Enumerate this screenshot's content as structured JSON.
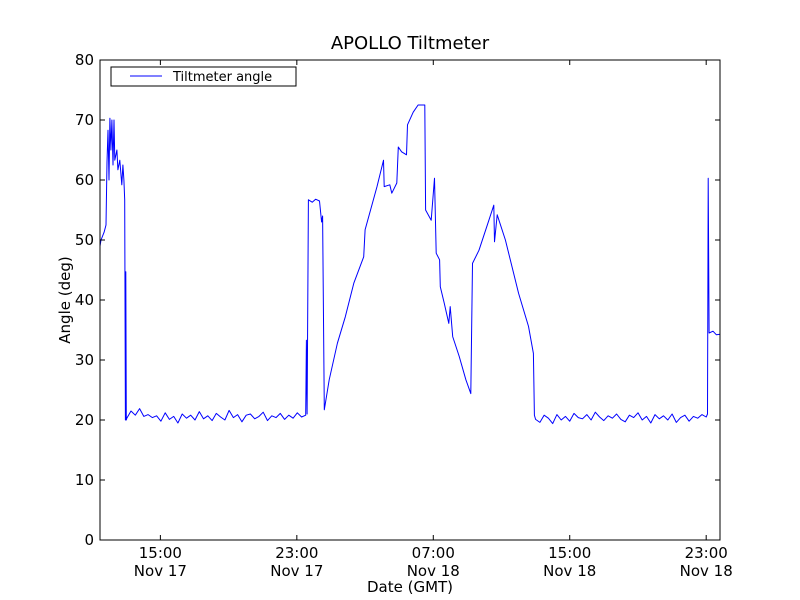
{
  "chart_data": {
    "type": "line",
    "title": "APOLLO Tiltmeter",
    "xlabel": "Date (GMT)",
    "ylabel": "Angle (deg)",
    "x_units": "hours since Nov 17 00:00 GMT",
    "xlim": [
      11.46,
      47.81
    ],
    "ylim": [
      0,
      80
    ],
    "yticks": [
      0,
      10,
      20,
      30,
      40,
      50,
      60,
      70,
      80
    ],
    "xticks": [
      {
        "value": 15,
        "time": "15:00",
        "date": "Nov 17"
      },
      {
        "value": 23,
        "time": "23:00",
        "date": "Nov 17"
      },
      {
        "value": 31,
        "time": "07:00",
        "date": "Nov 18"
      },
      {
        "value": 39,
        "time": "15:00",
        "date": "Nov 18"
      },
      {
        "value": 47,
        "time": "23:00",
        "date": "Nov 18"
      }
    ],
    "grid": false,
    "legend": {
      "position": "top-left",
      "entries": [
        "Tiltmeter angle"
      ]
    },
    "series": [
      {
        "name": "Tiltmeter angle",
        "color": "#0000ff",
        "segments": [
          {
            "points": [
              [
                11.46,
                0
              ],
              [
                11.46,
                49
              ],
              [
                11.52,
                50
              ],
              [
                11.7,
                51.3
              ],
              [
                11.81,
                52.5
              ],
              [
                11.87,
                63
              ],
              [
                11.93,
                68.3
              ],
              [
                11.99,
                60
              ],
              [
                12.04,
                70.3
              ],
              [
                12.1,
                65
              ],
              [
                12.16,
                70
              ],
              [
                12.22,
                62.5
              ],
              [
                12.28,
                70
              ],
              [
                12.33,
                63.3
              ],
              [
                12.45,
                65
              ],
              [
                12.51,
                61.7
              ],
              [
                12.62,
                63.3
              ],
              [
                12.74,
                59.2
              ],
              [
                12.8,
                62.5
              ],
              [
                12.86,
                60
              ],
              [
                12.91,
                56.7
              ],
              [
                12.95,
                20
              ],
              [
                12.97,
                44.7
              ],
              [
                13.0,
                20
              ]
            ]
          },
          {
            "t0": 13.03,
            "dt": 0.25,
            "values": [
              20.3,
              21.5,
              20.8,
              21.9,
              20.6,
              20.9,
              20.4,
              20.7,
              19.8,
              21.2,
              20.1,
              20.6,
              19.5,
              21.0,
              20.3,
              20.8,
              20.0,
              21.4,
              20.2,
              20.7,
              19.9,
              21.1,
              20.5,
              20.0,
              21.6,
              20.4,
              20.9,
              19.7,
              20.8,
              21.0,
              20.2,
              20.6,
              21.3,
              19.9,
              20.7,
              20.4,
              21.1,
              20.1,
              20.8,
              20.3,
              21.2,
              20.5
            ]
          },
          {
            "points": [
              [
                23.52,
                20.8
              ],
              [
                23.56,
                33.3
              ],
              [
                23.6,
                21
              ],
              [
                23.68,
                56.7
              ],
              [
                23.9,
                56.3
              ],
              [
                24.1,
                56.8
              ],
              [
                24.33,
                56.5
              ],
              [
                24.45,
                53
              ],
              [
                24.51,
                54
              ],
              [
                24.61,
                21.7
              ],
              [
                24.9,
                26.7
              ],
              [
                25.38,
                32.8
              ],
              [
                25.84,
                37.2
              ],
              [
                26.34,
                42.8
              ],
              [
                26.92,
                47.2
              ],
              [
                27.0,
                51.7
              ],
              [
                27.7,
                58.9
              ],
              [
                28.08,
                63.3
              ],
              [
                28.12,
                58.9
              ],
              [
                28.45,
                59.2
              ],
              [
                28.57,
                57.8
              ],
              [
                28.86,
                59.5
              ],
              [
                28.95,
                65.5
              ],
              [
                29.14,
                64.7
              ],
              [
                29.43,
                64.2
              ],
              [
                29.49,
                69.2
              ],
              [
                29.82,
                71.3
              ],
              [
                30.11,
                72.5
              ],
              [
                30.5,
                72.5
              ],
              [
                30.55,
                55
              ],
              [
                30.88,
                53.3
              ],
              [
                31.07,
                60.3
              ],
              [
                31.17,
                47.8
              ],
              [
                31.37,
                46.7
              ],
              [
                31.41,
                42.2
              ],
              [
                31.64,
                39.5
              ],
              [
                31.91,
                36.1
              ],
              [
                31.99,
                38.9
              ],
              [
                32.14,
                33.9
              ],
              [
                32.52,
                30.6
              ],
              [
                32.91,
                26.7
              ],
              [
                33.2,
                24.4
              ],
              [
                33.3,
                46.1
              ],
              [
                33.68,
                48.3
              ],
              [
                34.26,
                53.3
              ],
              [
                34.55,
                55.8
              ],
              [
                34.59,
                49.7
              ],
              [
                34.75,
                54.2
              ],
              [
                35.23,
                50
              ],
              [
                36.0,
                41.1
              ],
              [
                36.58,
                35.6
              ],
              [
                36.87,
                31.1
              ],
              [
                36.93,
                20.8
              ]
            ]
          },
          {
            "t0": 37.0,
            "dt": 0.25,
            "values": [
              20.1,
              19.6,
              20.8,
              20.3,
              19.4,
              20.9,
              20.0,
              20.6,
              19.8,
              21.1,
              20.4,
              20.2,
              20.9,
              20.0,
              21.3,
              20.5,
              19.9,
              20.7,
              20.3,
              21.0,
              20.1,
              19.7,
              20.8,
              20.4,
              21.2,
              20.0,
              20.6,
              19.5,
              20.9,
              20.2,
              20.7,
              20.0,
              21.0,
              19.6,
              20.4,
              20.8,
              19.8,
              20.6,
              20.3,
              20.9
            ]
          },
          {
            "points": [
              [
                47.0,
                20.5
              ],
              [
                47.08,
                21
              ],
              [
                47.12,
                60.3
              ],
              [
                47.17,
                34.5
              ],
              [
                47.4,
                34.8
              ],
              [
                47.6,
                34.2
              ],
              [
                47.81,
                34.3
              ]
            ]
          }
        ]
      }
    ]
  }
}
